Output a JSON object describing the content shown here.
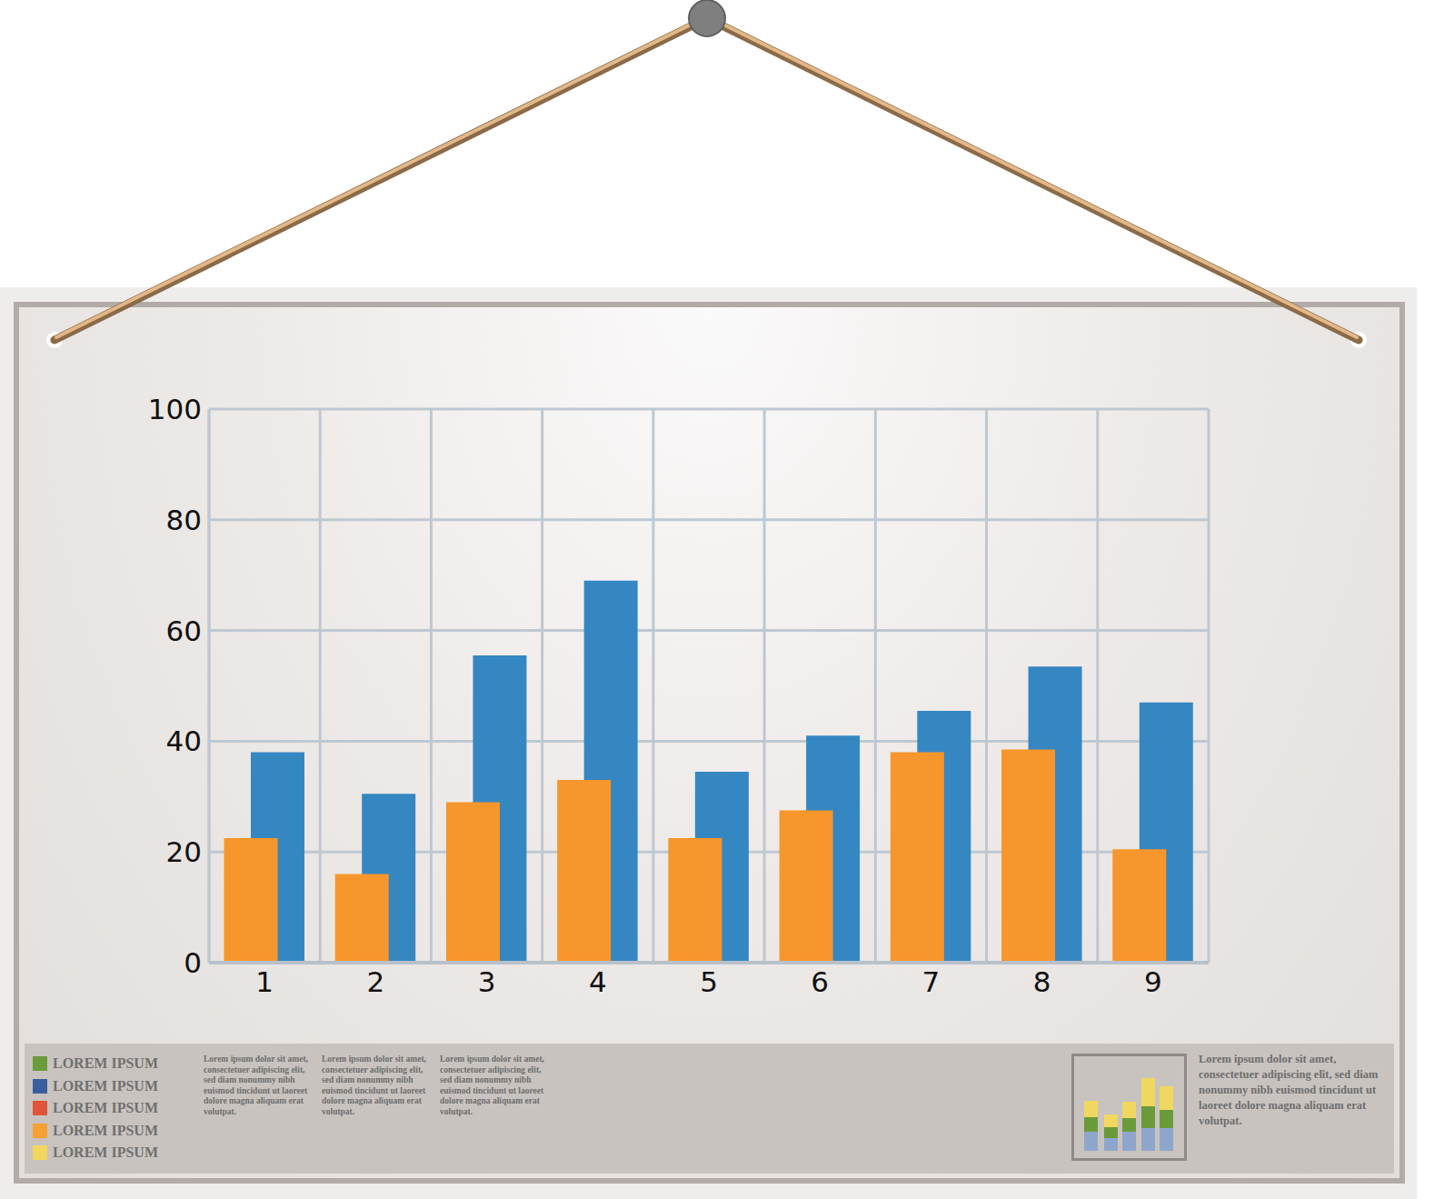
{
  "chart_data": {
    "type": "bar",
    "categories": [
      "1",
      "2",
      "3",
      "4",
      "5",
      "6",
      "7",
      "8",
      "9"
    ],
    "series": [
      {
        "color": "#f7962c",
        "values": [
          22.5,
          16,
          29,
          33,
          22.5,
          27.5,
          38,
          38.5,
          20.5
        ]
      },
      {
        "color": "#3587c2",
        "values": [
          38,
          30.5,
          55.5,
          69,
          34.5,
          41,
          45.5,
          53.5,
          47
        ]
      }
    ],
    "ylim": [
      0,
      100
    ],
    "yticks": [
      0,
      20,
      40,
      60,
      80,
      100
    ],
    "grid": true
  },
  "footer": {
    "legend": [
      {
        "label": "LOREM IPSUM",
        "color": "#6a9b3a"
      },
      {
        "label": "LOREM IPSUM",
        "color": "#3a5f9f"
      },
      {
        "label": "LOREM IPSUM",
        "color": "#e0553a"
      },
      {
        "label": "LOREM IPSUM",
        "color": "#f5a033"
      },
      {
        "label": "LOREM IPSUM",
        "color": "#f0d860"
      }
    ],
    "columns": [
      "Lorem ipsum dolor sit amet, consectetuer adipiscing elit, sed diam nonummy nibh euismod tincidunt ut laoreet dolore magna aliquam erat volutpat.",
      "Lorem ipsum dolor sit amet, consectetuer adipiscing elit, sed diam nonummy nibh euismod tincidunt ut laoreet dolore magna aliquam erat volutpat.",
      "Lorem ipsum dolor sit amet, consectetuer adipiscing elit, sed diam nonummy nibh euismod tincidunt ut laoreet dolore magna aliquam erat volutpat."
    ],
    "side_text": "Lorem ipsum dolor sit amet, consectetuer adipiscing elit, sed diam nonummy nibh euismod tincidunt ut laoreet dolore magna aliquam erat volutpat."
  }
}
